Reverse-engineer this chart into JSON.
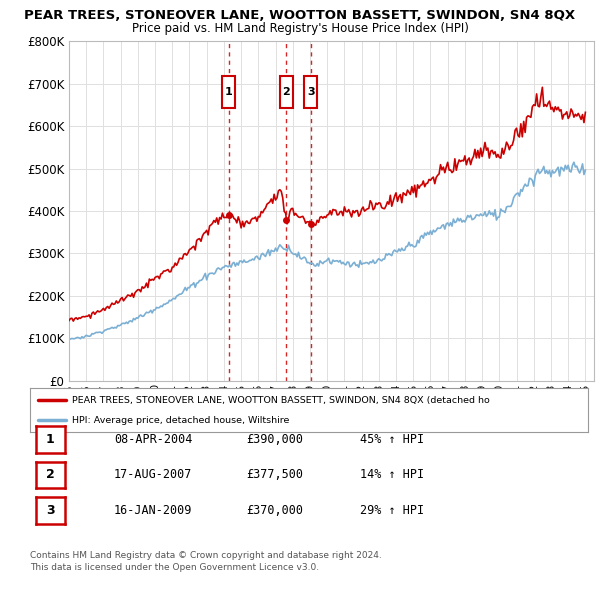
{
  "title": "PEAR TREES, STONEOVER LANE, WOOTTON BASSETT, SWINDON, SN4 8QX",
  "subtitle": "Price paid vs. HM Land Registry's House Price Index (HPI)",
  "ylim": [
    0,
    800000
  ],
  "yticks": [
    0,
    100000,
    200000,
    300000,
    400000,
    500000,
    600000,
    700000,
    800000
  ],
  "xlim_start": 1995.0,
  "xlim_end": 2025.5,
  "sale_dates": [
    2004.27,
    2007.63,
    2009.04
  ],
  "sale_prices": [
    390000,
    377500,
    370000
  ],
  "sale_labels": [
    "1",
    "2",
    "3"
  ],
  "sale_date_strs": [
    "08-APR-2004",
    "17-AUG-2007",
    "16-JAN-2009"
  ],
  "sale_price_strs": [
    "£390,000",
    "£377,500",
    "£370,000"
  ],
  "sale_hpi_strs": [
    "45% ↑ HPI",
    "14% ↑ HPI",
    "29% ↑ HPI"
  ],
  "hpi_color": "#7bafd4",
  "price_color": "#cc0000",
  "legend_price_label": "PEAR TREES, STONEOVER LANE, WOOTTON BASSETT, SWINDON, SN4 8QX (detached ho",
  "legend_hpi_label": "HPI: Average price, detached house, Wiltshire",
  "footnote1": "Contains HM Land Registry data © Crown copyright and database right 2024.",
  "footnote2": "This data is licensed under the Open Government Licence v3.0.",
  "bg_color": "#ffffff",
  "grid_color": "#e0e0e0"
}
